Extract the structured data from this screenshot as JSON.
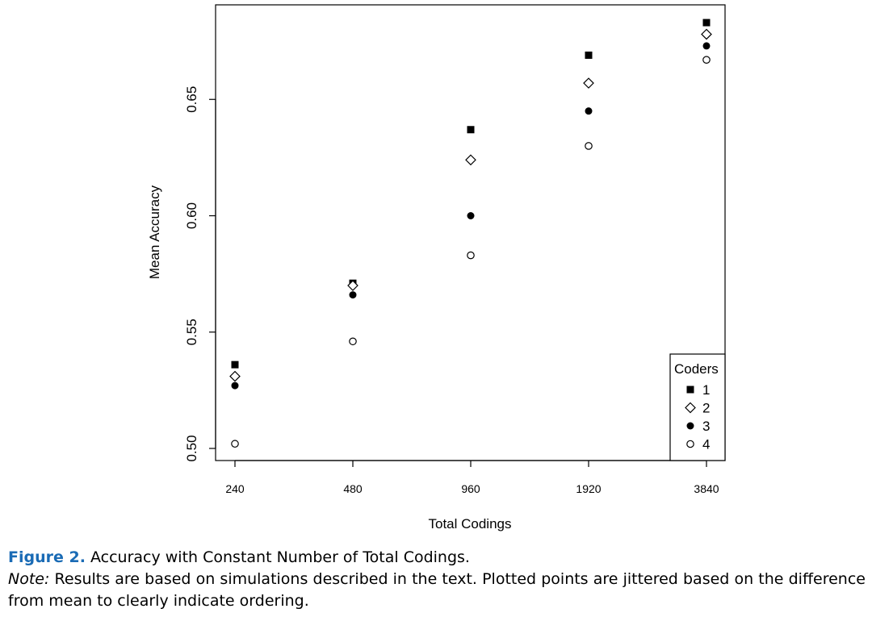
{
  "chart_data": {
    "type": "scatter",
    "xlabel": "Total Codings",
    "ylabel": "Mean Accuracy",
    "x_ticks": [
      240,
      480,
      960,
      1920,
      3840
    ],
    "y_ticks": [
      "0.50",
      "0.55",
      "0.60",
      "0.65"
    ],
    "ylim": [
      0.5,
      0.685
    ],
    "grid": false,
    "legend": {
      "title": "Coders",
      "position": "bottom-right"
    },
    "series": [
      {
        "name": "1",
        "marker": "filled-square",
        "x": [
          240,
          480,
          960,
          1920,
          3840
        ],
        "y": [
          0.536,
          0.571,
          0.637,
          0.669,
          0.683
        ]
      },
      {
        "name": "2",
        "marker": "open-diamond",
        "x": [
          240,
          480,
          960,
          1920,
          3840
        ],
        "y": [
          0.531,
          0.57,
          0.624,
          0.657,
          0.678
        ]
      },
      {
        "name": "3",
        "marker": "filled-circle",
        "x": [
          240,
          480,
          960,
          1920,
          3840
        ],
        "y": [
          0.527,
          0.566,
          0.6,
          0.645,
          0.673
        ]
      },
      {
        "name": "4",
        "marker": "open-circle",
        "x": [
          240,
          480,
          960,
          1920,
          3840
        ],
        "y": [
          0.502,
          0.546,
          0.583,
          0.63,
          0.667
        ]
      }
    ]
  },
  "caption": {
    "figure_label": "Figure 2.",
    "title": "Accuracy with Constant Number of Total Codings.",
    "note_label": "Note:",
    "note_text": "Results are based on simulations described in the text. Plotted points are jittered based on the difference from mean to clearly indicate ordering."
  }
}
